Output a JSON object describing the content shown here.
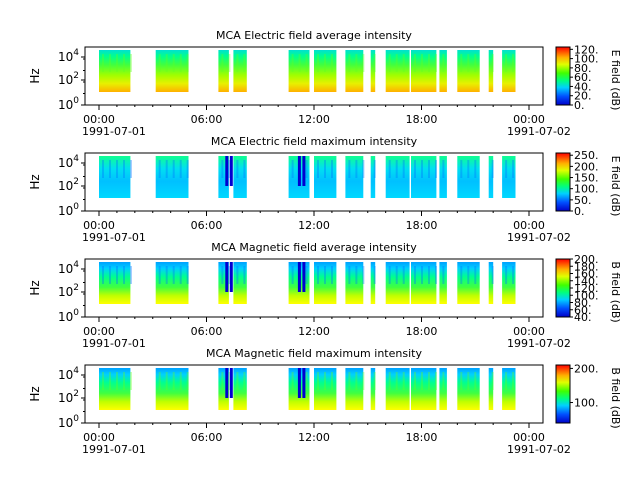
{
  "chart_data": [
    {
      "type": "heatmap",
      "title": "MCA  Electric field average intensity",
      "ylabel": "Hz",
      "y_scale": "log",
      "ylim": [
        1,
        40000
      ],
      "y_ticks": [
        "10^0",
        "10^2",
        "10^4"
      ],
      "x_ticks": [
        "00:00",
        "06:00",
        "12:00",
        "18:00",
        "00:00"
      ],
      "x_start_date": "1991-07-01",
      "x_end_date": "1991-07-02",
      "colorbar": {
        "label": "E field (dB)",
        "min": 0,
        "max": 125,
        "ticks": [
          "0.",
          "20.",
          "40.",
          "60.",
          "80.",
          "100.",
          "120."
        ]
      },
      "data_intervals": [
        [
          "00:00",
          "01:45"
        ],
        [
          "03:10",
          "05:00"
        ],
        [
          "06:40",
          "07:15"
        ],
        [
          "07:30",
          "08:15"
        ],
        [
          "10:35",
          "11:45"
        ],
        [
          "12:00",
          "13:15"
        ],
        [
          "13:45",
          "14:45"
        ],
        [
          "15:10",
          "15:25"
        ],
        [
          "16:00",
          "17:20"
        ],
        [
          "17:25",
          "18:50"
        ],
        [
          "19:00",
          "19:25"
        ],
        [
          "20:00",
          "21:15"
        ],
        [
          "21:45",
          "22:00"
        ],
        [
          "22:30",
          "23:15"
        ]
      ]
    },
    {
      "type": "heatmap",
      "title": "MCA  Electric field maximum intensity",
      "ylabel": "Hz",
      "y_scale": "log",
      "ylim": [
        1,
        40000
      ],
      "y_ticks": [
        "10^0",
        "10^2",
        "10^4"
      ],
      "x_ticks": [
        "00:00",
        "06:00",
        "12:00",
        "18:00",
        "00:00"
      ],
      "x_start_date": "1991-07-01",
      "x_end_date": "1991-07-02",
      "colorbar": {
        "label": "E field (dB)",
        "min": 0,
        "max": 260,
        "ticks": [
          "0.",
          "50.",
          "100.",
          "150.",
          "200.",
          "250."
        ]
      },
      "data_intervals": [
        [
          "00:00",
          "01:45"
        ],
        [
          "03:10",
          "05:00"
        ],
        [
          "06:40",
          "07:15"
        ],
        [
          "07:30",
          "08:15"
        ],
        [
          "10:35",
          "11:45"
        ],
        [
          "12:00",
          "13:15"
        ],
        [
          "13:45",
          "14:45"
        ],
        [
          "15:10",
          "15:25"
        ],
        [
          "16:00",
          "17:20"
        ],
        [
          "17:25",
          "18:50"
        ],
        [
          "19:00",
          "19:25"
        ],
        [
          "20:00",
          "21:15"
        ],
        [
          "21:45",
          "22:00"
        ],
        [
          "22:30",
          "23:15"
        ]
      ]
    },
    {
      "type": "heatmap",
      "title": "MCA  Magnetic field average intensity",
      "ylabel": "Hz",
      "y_scale": "log",
      "ylim": [
        1,
        40000
      ],
      "y_ticks": [
        "10^0",
        "10^2",
        "10^4"
      ],
      "x_ticks": [
        "00:00",
        "06:00",
        "12:00",
        "18:00",
        "00:00"
      ],
      "x_start_date": "1991-07-01",
      "x_end_date": "1991-07-02",
      "colorbar": {
        "label": "B field (dB)",
        "min": 40,
        "max": 200,
        "ticks": [
          "40.",
          "60.",
          "80.",
          "100.",
          "120.",
          "140.",
          "160.",
          "180.",
          "200."
        ]
      },
      "data_intervals": [
        [
          "00:00",
          "01:45"
        ],
        [
          "03:10",
          "05:00"
        ],
        [
          "06:40",
          "07:15"
        ],
        [
          "07:30",
          "08:15"
        ],
        [
          "10:35",
          "11:45"
        ],
        [
          "12:00",
          "13:15"
        ],
        [
          "13:45",
          "14:45"
        ],
        [
          "15:10",
          "15:25"
        ],
        [
          "16:00",
          "17:20"
        ],
        [
          "17:25",
          "18:50"
        ],
        [
          "19:00",
          "19:25"
        ],
        [
          "20:00",
          "21:15"
        ],
        [
          "21:45",
          "22:00"
        ],
        [
          "22:30",
          "23:15"
        ]
      ]
    },
    {
      "type": "heatmap",
      "title": "MCA  Magnetic field maximum intensity",
      "ylabel": "Hz",
      "y_scale": "log",
      "ylim": [
        1,
        40000
      ],
      "y_ticks": [
        "10^0",
        "10^2",
        "10^4"
      ],
      "x_ticks": [
        "00:00",
        "06:00",
        "12:00",
        "18:00",
        "00:00"
      ],
      "x_start_date": "1991-07-01",
      "x_end_date": "1991-07-02",
      "colorbar": {
        "label": "B field (dB)",
        "min": 40,
        "max": 210,
        "ticks": [
          "100.",
          "200."
        ]
      },
      "data_intervals": [
        [
          "00:00",
          "01:45"
        ],
        [
          "03:10",
          "05:00"
        ],
        [
          "06:40",
          "07:15"
        ],
        [
          "07:30",
          "08:15"
        ],
        [
          "10:35",
          "11:45"
        ],
        [
          "12:00",
          "13:15"
        ],
        [
          "13:45",
          "14:45"
        ],
        [
          "15:10",
          "15:25"
        ],
        [
          "16:00",
          "17:20"
        ],
        [
          "17:25",
          "18:50"
        ],
        [
          "19:00",
          "19:25"
        ],
        [
          "20:00",
          "21:15"
        ],
        [
          "21:45",
          "22:00"
        ],
        [
          "22:30",
          "23:15"
        ]
      ]
    }
  ]
}
